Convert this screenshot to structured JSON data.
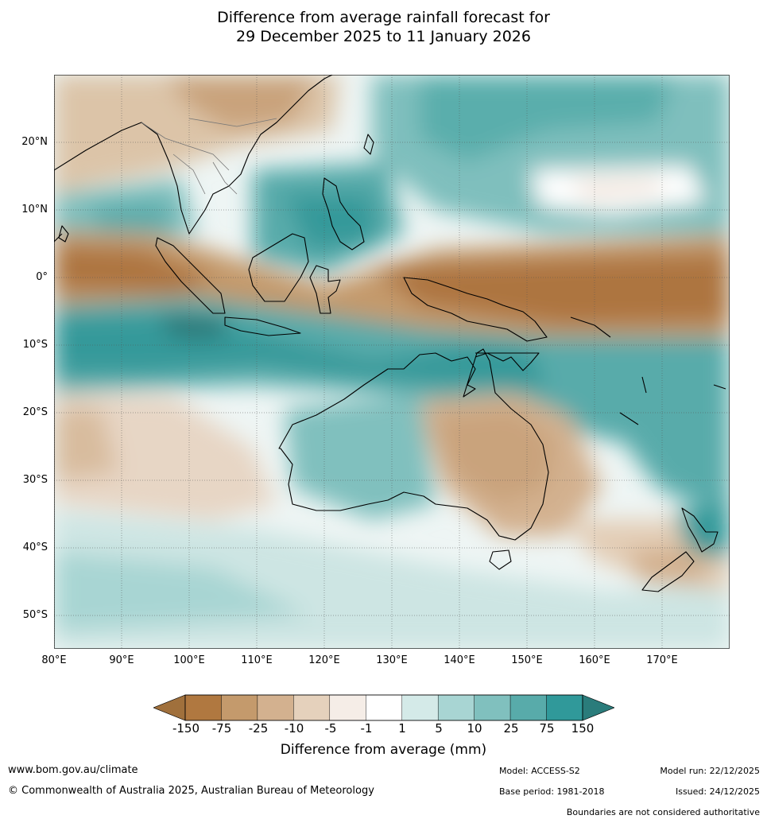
{
  "title": {
    "line1": "Difference from average rainfall forecast for",
    "line2": "29 December 2025 to 11 January 2026"
  },
  "map": {
    "lat_labels": [
      "20°N",
      "10°N",
      "0°",
      "10°S",
      "20°S",
      "30°S",
      "40°S",
      "50°S"
    ],
    "lon_labels": [
      "80°E",
      "90°E",
      "100°E",
      "110°E",
      "120°E",
      "130°E",
      "140°E",
      "150°E",
      "160°E",
      "170°E"
    ],
    "lon_range": [
      80,
      180
    ],
    "lat_range": [
      -55,
      30
    ]
  },
  "colorbar": {
    "ticks": [
      "-150",
      "-75",
      "-25",
      "-10",
      "-5",
      "-1",
      "1",
      "5",
      "10",
      "25",
      "75",
      "150"
    ],
    "colors": [
      "#a0703c",
      "#b07840",
      "#c49a6c",
      "#d3b18f",
      "#e5d1bc",
      "#f5ede7",
      "#ffffff",
      "#d4eae8",
      "#a8d5d3",
      "#80c0be",
      "#58abaa",
      "#30999a",
      "#2a7c7b"
    ],
    "label": "Difference from average (mm)"
  },
  "footer": {
    "website": "www.bom.gov.au/climate",
    "copyright": "© Commonwealth of Australia 2025, Australian Bureau of Meteorology",
    "model": "Model: ACCESS-S2",
    "base_period": "Base period: 1981-2018",
    "model_run": "Model run: 22/12/2025",
    "issued": "Issued: 24/12/2025",
    "disclaimer": "Boundaries are not considered authoritative"
  }
}
